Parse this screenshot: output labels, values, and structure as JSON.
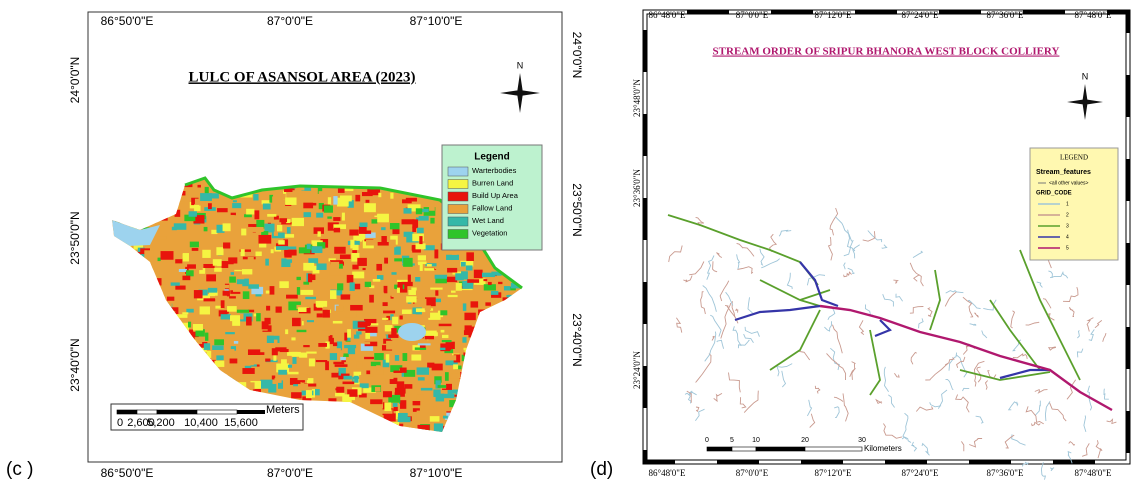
{
  "panels": [
    {
      "label": "(c )",
      "title": "LULC OF ASANSOL AREA (2023)",
      "top_labels": [
        "86°50'0\"E",
        "87°0'0\"E",
        "87°10'0\"E"
      ],
      "bottom_labels": [
        "86°50'0\"E",
        "87°0'0\"E",
        "87°10'0\"E"
      ],
      "left_labels": [
        "24°0'0\"N",
        "23°50'0\"N",
        "23°40'0\"N"
      ],
      "right_labels": [
        "24°0'0\"N",
        "23°50'0\"N",
        "23°40'0\"N"
      ],
      "north": "N",
      "legend": {
        "title": "Legend",
        "items": [
          {
            "name": "Warterbodies",
            "color": "#9dd3ee"
          },
          {
            "name": "Burren Land",
            "color": "#f5f542"
          },
          {
            "name": "Build Up Area",
            "color": "#e8140c"
          },
          {
            "name": "Fallow Land",
            "color": "#e9a23b"
          },
          {
            "name": "Wet Land",
            "color": "#35b8a8"
          },
          {
            "name": "Vegetation",
            "color": "#2fc42a"
          }
        ]
      },
      "scale": {
        "unit": "Meters",
        "labels": [
          "0",
          "2,600",
          "5,200",
          "10,400",
          "15,600"
        ]
      }
    },
    {
      "label": "(d)",
      "title": "STREAM ORDER OF SRIPUR BHANORA WEST BLOCK COLLIERY",
      "top_labels": [
        "86°48'0\"E",
        "87°0'0\"E",
        "87°12'0\"E",
        "87°24'0\"E",
        "87°36'0\"E",
        "87°48'0\"E"
      ],
      "bottom_labels": [
        "86°48'0\"E",
        "87°0'0\"E",
        "87°12'0\"E",
        "87°24'0\"E",
        "87°36'0\"E",
        "87°48'0\"E"
      ],
      "left_labels": [
        "23°48'0\"N",
        "23°36'0\"N",
        "23°24'0\"N"
      ],
      "north": "N",
      "legend": {
        "title": "LEGEND",
        "layer": "Stream_features",
        "other": "<all other values>",
        "field": "GRID_CODE",
        "items": [
          {
            "name": "1",
            "color": "#9fc5d8"
          },
          {
            "name": "2",
            "color": "#c99a8f"
          },
          {
            "name": "3",
            "color": "#5aa02c"
          },
          {
            "name": "4",
            "color": "#3535a8"
          },
          {
            "name": "5",
            "color": "#b0186e"
          }
        ]
      },
      "scale": {
        "unit": "Kilometers",
        "labels": [
          "0",
          "5",
          "10",
          "20",
          "30"
        ]
      }
    }
  ]
}
